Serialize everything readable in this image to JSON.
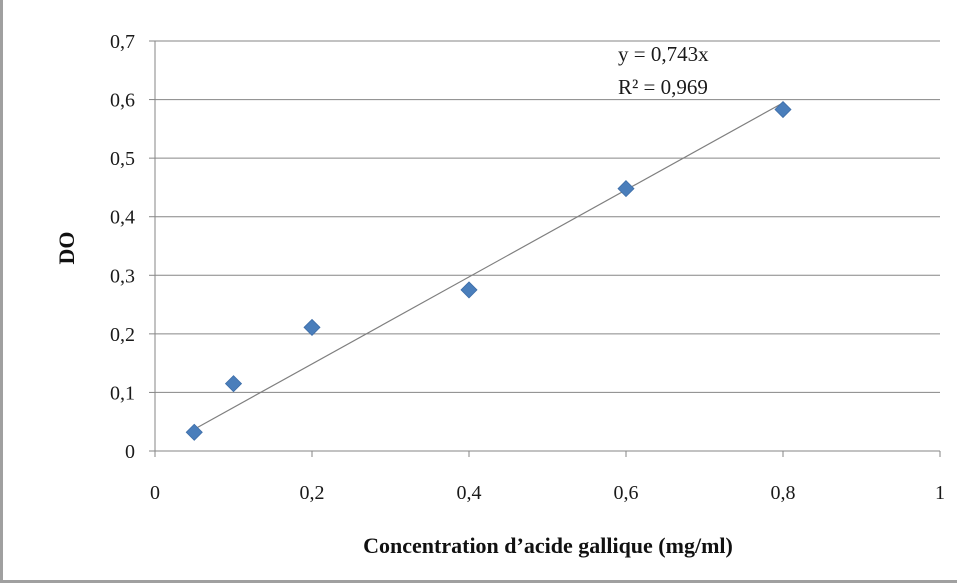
{
  "chart_data": {
    "type": "scatter",
    "title": "",
    "xlabel": "Concentration d’acide gallique (mg/ml)",
    "ylabel": "DO",
    "xlim": [
      0,
      1
    ],
    "ylim": [
      0,
      0.7
    ],
    "x_ticks": [
      {
        "value": 0,
        "label": "0"
      },
      {
        "value": 0.2,
        "label": "0,2"
      },
      {
        "value": 0.4,
        "label": "0,4"
      },
      {
        "value": 0.6,
        "label": "0,6"
      },
      {
        "value": 0.8,
        "label": "0,8"
      },
      {
        "value": 1,
        "label": "1"
      }
    ],
    "y_ticks": [
      {
        "value": 0,
        "label": "0"
      },
      {
        "value": 0.1,
        "label": "0,1"
      },
      {
        "value": 0.2,
        "label": "0,2"
      },
      {
        "value": 0.3,
        "label": "0,3"
      },
      {
        "value": 0.4,
        "label": "0,4"
      },
      {
        "value": 0.5,
        "label": "0,5"
      },
      {
        "value": 0.6,
        "label": "0,6"
      },
      {
        "value": 0.7,
        "label": "0,7"
      }
    ],
    "grid": "horizontal",
    "marker": "diamond",
    "marker_color": "#4a7ebb",
    "series": [
      {
        "points": [
          {
            "x": 0.05,
            "y": 0.032
          },
          {
            "x": 0.1,
            "y": 0.115
          },
          {
            "x": 0.2,
            "y": 0.211
          },
          {
            "x": 0.4,
            "y": 0.275
          },
          {
            "x": 0.6,
            "y": 0.448
          },
          {
            "x": 0.8,
            "y": 0.583
          }
        ]
      }
    ],
    "trendline": {
      "slope": 0.743,
      "intercept": 0,
      "x_range": [
        0.05,
        0.8
      ],
      "color": "#7f7f7f",
      "equation_label": "y = 0,743x",
      "r2_label": "R² = 0,969"
    }
  }
}
